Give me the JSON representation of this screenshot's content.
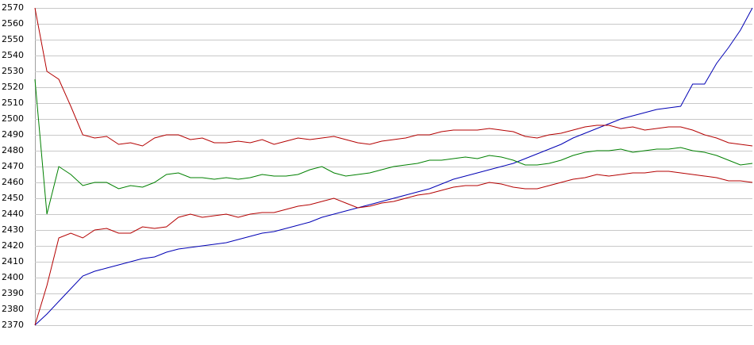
{
  "chart_data": {
    "type": "line",
    "ylim": [
      2370,
      2570
    ],
    "yticks": [
      2370,
      2380,
      2390,
      2400,
      2410,
      2420,
      2430,
      2440,
      2450,
      2460,
      2470,
      2480,
      2490,
      2500,
      2510,
      2520,
      2530,
      2540,
      2550,
      2560,
      2570
    ],
    "grid": true,
    "series": [
      {
        "color": "#0000b4",
        "values": [
          2370,
          2377,
          2385,
          2393,
          2401,
          2404,
          2406,
          2408,
          2410,
          2412,
          2413,
          2416,
          2418,
          2419,
          2420,
          2421,
          2422,
          2424,
          2426,
          2428,
          2429,
          2431,
          2433,
          2435,
          2438,
          2440,
          2442,
          2444,
          2446,
          2448,
          2450,
          2452,
          2454,
          2456,
          2459,
          2462,
          2464,
          2466,
          2468,
          2470,
          2472,
          2475,
          2478,
          2481,
          2484,
          2488,
          2491,
          2494,
          2497,
          2500,
          2502,
          2504,
          2506,
          2507,
          2508,
          2522,
          2522,
          2535,
          2545,
          2556,
          2570
        ]
      },
      {
        "color": "#b40000",
        "values": [
          2570,
          2530,
          2525,
          2508,
          2490,
          2488,
          2489,
          2484,
          2485,
          2483,
          2488,
          2490,
          2490,
          2487,
          2488,
          2485,
          2485,
          2486,
          2485,
          2487,
          2484,
          2486,
          2488,
          2487,
          2488,
          2489,
          2487,
          2485,
          2484,
          2486,
          2487,
          2488,
          2490,
          2490,
          2492,
          2493,
          2493,
          2493,
          2494,
          2493,
          2492,
          2489,
          2488,
          2490,
          2491,
          2493,
          2495,
          2496,
          2496,
          2494,
          2495,
          2493,
          2494,
          2495,
          2495,
          2493,
          2490,
          2488,
          2485,
          2484,
          2483
        ]
      },
      {
        "color": "#008000",
        "values": [
          2525,
          2440,
          2470,
          2465,
          2458,
          2460,
          2460,
          2456,
          2458,
          2457,
          2460,
          2465,
          2466,
          2463,
          2463,
          2462,
          2463,
          2462,
          2463,
          2465,
          2464,
          2464,
          2465,
          2468,
          2470,
          2466,
          2464,
          2465,
          2466,
          2468,
          2470,
          2471,
          2472,
          2474,
          2474,
          2475,
          2476,
          2475,
          2477,
          2476,
          2474,
          2471,
          2471,
          2472,
          2474,
          2477,
          2479,
          2480,
          2480,
          2481,
          2479,
          2480,
          2481,
          2481,
          2482,
          2480,
          2479,
          2477,
          2474,
          2471,
          2472
        ]
      },
      {
        "color": "#b40000",
        "values": [
          2370,
          2395,
          2425,
          2428,
          2425,
          2430,
          2431,
          2428,
          2428,
          2432,
          2431,
          2432,
          2438,
          2440,
          2438,
          2439,
          2440,
          2438,
          2440,
          2441,
          2441,
          2443,
          2445,
          2446,
          2448,
          2450,
          2447,
          2444,
          2445,
          2447,
          2448,
          2450,
          2452,
          2453,
          2455,
          2457,
          2458,
          2458,
          2460,
          2459,
          2457,
          2456,
          2456,
          2458,
          2460,
          2462,
          2463,
          2465,
          2464,
          2465,
          2466,
          2466,
          2467,
          2467,
          2466,
          2465,
          2464,
          2463,
          2461,
          2461,
          2460
        ]
      }
    ]
  }
}
